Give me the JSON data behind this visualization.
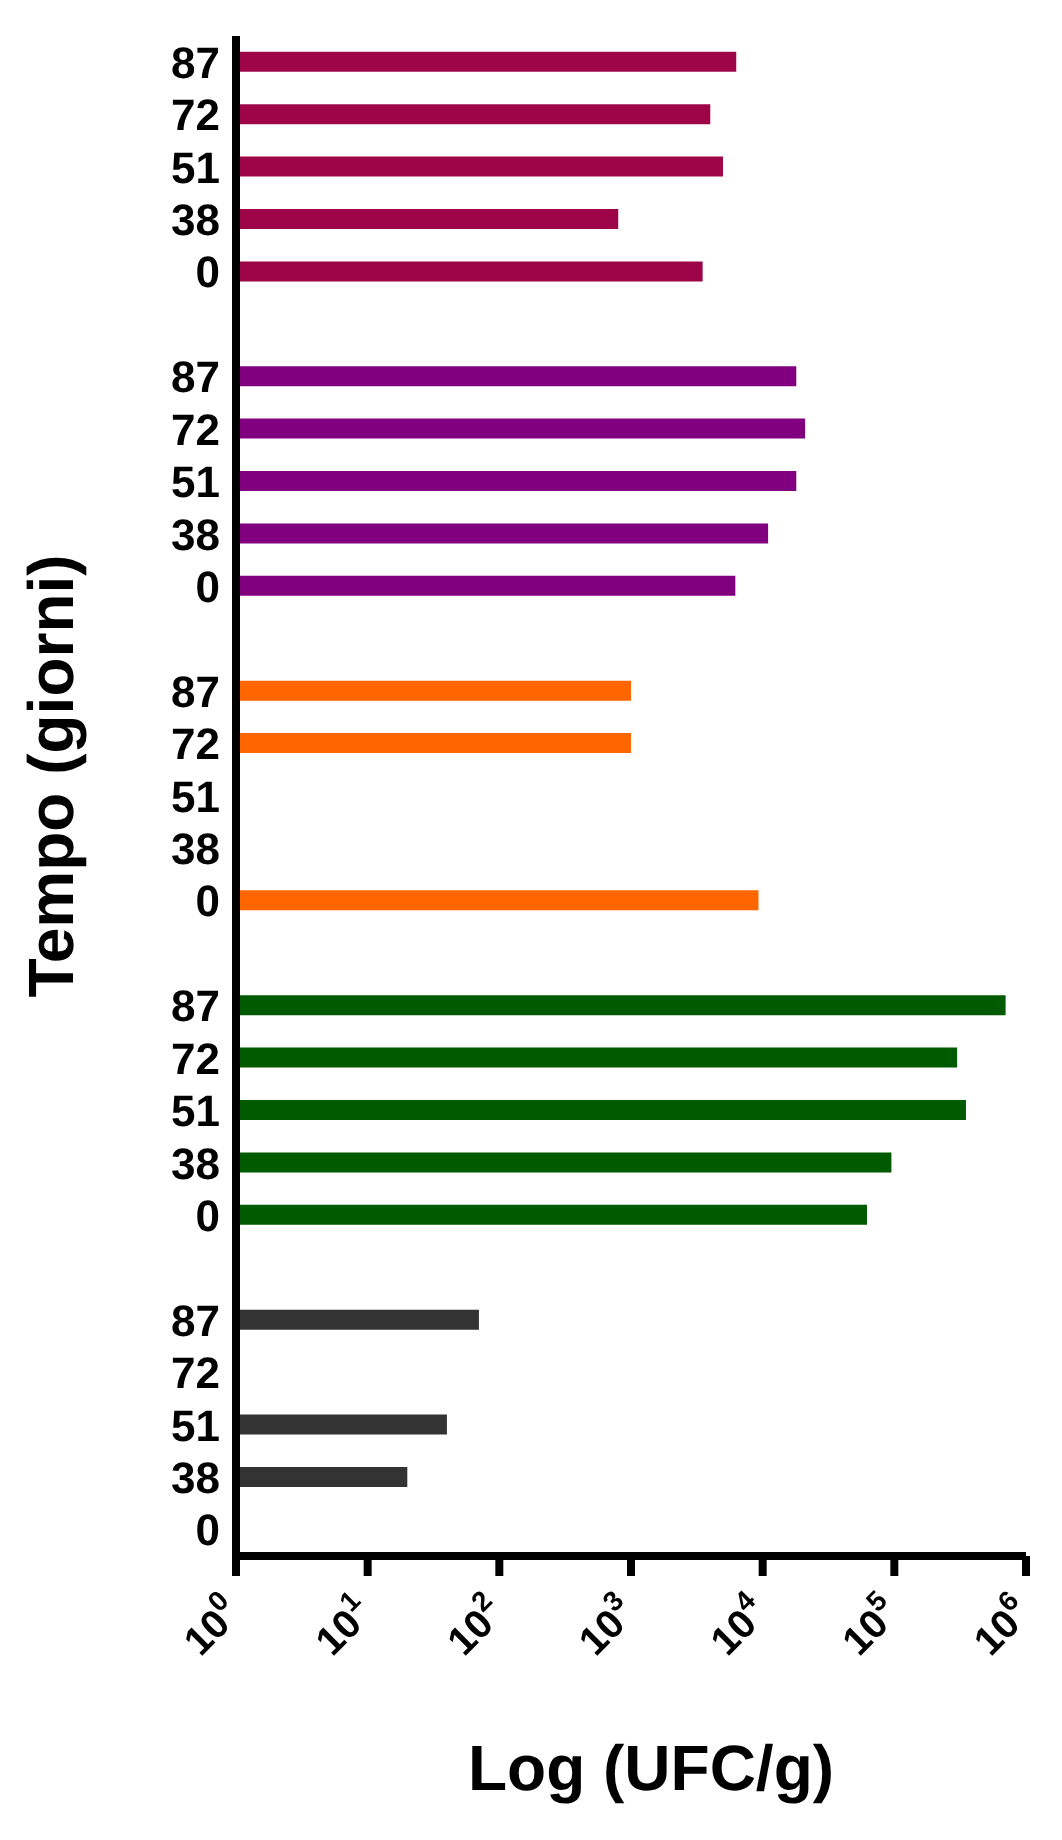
{
  "chart_data": {
    "type": "bar",
    "orientation": "horizontal",
    "log": "x",
    "xlabel": "Log (UFC/g)",
    "ylabel": "Tempo (giorni)",
    "categories": [
      "87",
      "72",
      "51",
      "38",
      "0",
      null,
      "87",
      "72",
      "51",
      "38",
      "0",
      null,
      "87",
      "72",
      "51",
      "38",
      "0",
      null,
      "87",
      "72",
      "51",
      "38",
      "0",
      null,
      "87",
      "72",
      "51",
      "38",
      "0"
    ],
    "values": [
      6300,
      4000,
      5000,
      800,
      3500,
      null,
      18000,
      21000,
      18000,
      11000,
      6200,
      null,
      1000,
      1000,
      null,
      null,
      9300,
      null,
      700000,
      300000,
      350000,
      95000,
      62000,
      null,
      70,
      null,
      40,
      20,
      null
    ],
    "colors": [
      "#9e0448",
      "#9e0448",
      "#9e0448",
      "#9e0448",
      "#9e0448",
      null,
      "#800080",
      "#800080",
      "#800080",
      "#800080",
      "#800080",
      null,
      "#ff6600",
      "#ff6600",
      "#ff6600",
      "#ff6600",
      "#ff6600",
      null,
      "#005a00",
      "#005a00",
      "#005a00",
      "#005a00",
      "#005a00",
      null,
      "#333333",
      "#333333",
      "#333333",
      "#333333",
      "#333333"
    ],
    "xlim": [
      1,
      1000000
    ],
    "xticks": [
      {
        "value": 1,
        "label": "10$^{0}$"
      },
      {
        "value": 10,
        "label": "10$^{1}$"
      },
      {
        "value": 100,
        "label": "10$^{2}$"
      },
      {
        "value": 1000,
        "label": "10$^{3}$"
      },
      {
        "value": 10000,
        "label": "10$^{4}$"
      },
      {
        "value": 100000,
        "label": "10$^{5}$"
      },
      {
        "value": 1000000,
        "label": "10$^{6}$"
      }
    ]
  }
}
